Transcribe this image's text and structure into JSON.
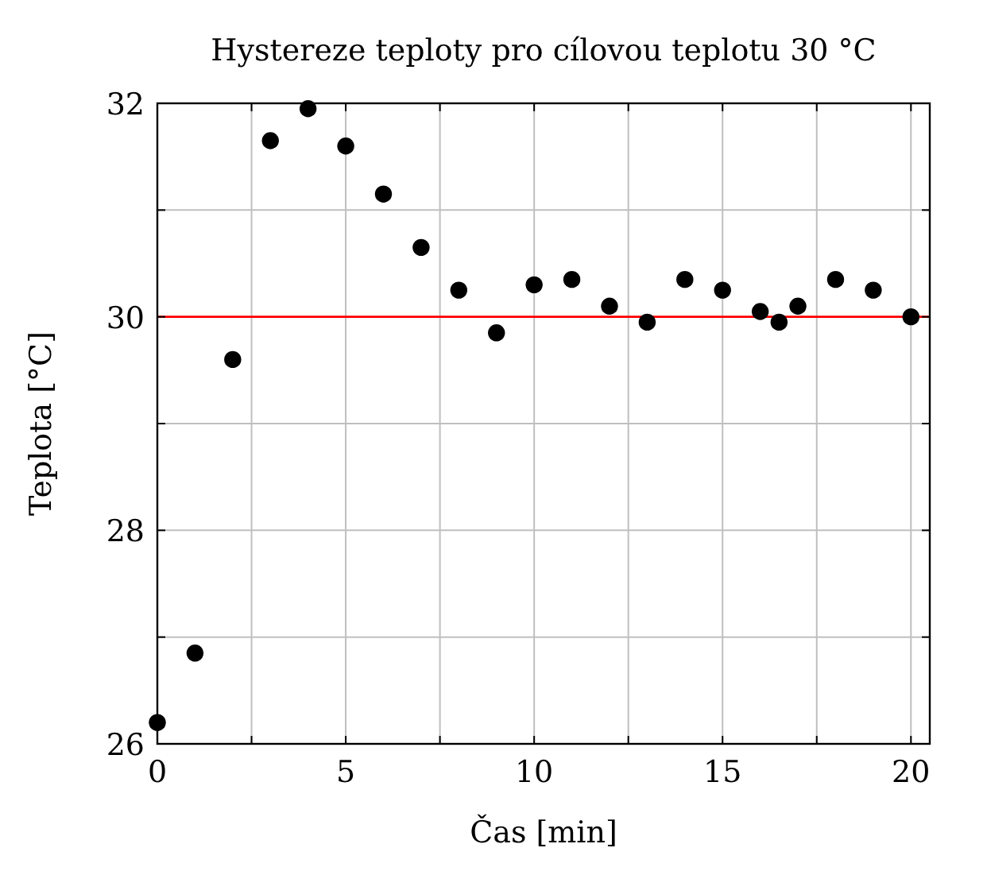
{
  "chart_data": {
    "type": "scatter",
    "title": "Hystereze teploty pro cílovou teplotu 30 °C",
    "xlabel": "Čas [min]",
    "ylabel": "Teplota [°C]",
    "x": [
      0,
      1,
      2,
      3,
      4,
      5,
      6,
      7,
      8,
      9,
      10,
      11,
      12,
      13,
      14,
      15,
      16,
      16.5,
      17,
      18,
      19,
      20
    ],
    "series": [
      {
        "color": "#000000",
        "values": [
          26.2,
          26.85,
          29.6,
          31.65,
          31.95,
          31.6,
          31.15,
          30.65,
          30.25,
          29.85,
          30.3,
          30.35,
          30.1,
          29.95,
          30.35,
          30.25,
          30.05,
          29.95,
          30.1,
          30.35,
          30.25,
          30.0
        ]
      }
    ],
    "xlim": [
      0,
      20.5
    ],
    "ylim": [
      26,
      32
    ],
    "xticks": [
      0,
      {
        "value": 2.5,
        "label": null
      },
      5,
      {
        "value": 7.5,
        "label": null
      },
      10,
      {
        "value": 12.5,
        "label": null
      },
      15,
      {
        "value": 17.5,
        "label": null
      },
      20
    ],
    "yticks": [
      26,
      {
        "value": 27,
        "label": null
      },
      28,
      {
        "value": 29,
        "label": null
      },
      30,
      {
        "value": 31,
        "label": null
      },
      32
    ],
    "grid": true,
    "marker": "circle",
    "ref_lines": [
      {
        "axis": "y",
        "value": 30,
        "color": "#ff0000"
      }
    ]
  }
}
